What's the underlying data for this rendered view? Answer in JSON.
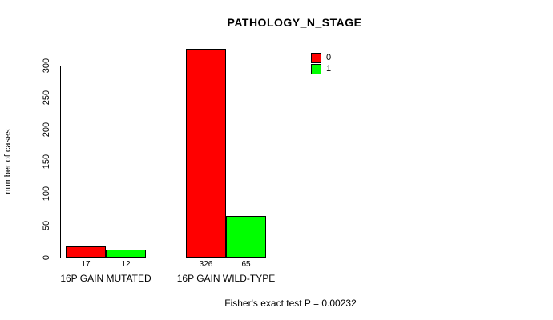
{
  "chart_data": {
    "type": "bar",
    "title": "PATHOLOGY_N_STAGE",
    "xlabel": "",
    "ylabel": "number of cases",
    "ylim": [
      0,
      300
    ],
    "yticks": [
      0,
      50,
      100,
      150,
      200,
      250,
      300
    ],
    "categories": [
      "16P GAIN MUTATED",
      "16P GAIN WILD-TYPE"
    ],
    "series": [
      {
        "name": "0",
        "color": "#ff0000",
        "values": [
          17,
          326
        ]
      },
      {
        "name": "1",
        "color": "#00ff00",
        "values": [
          12,
          65
        ]
      }
    ],
    "bar_count_labels": [
      [
        "17",
        "12"
      ],
      [
        "326",
        "65"
      ]
    ],
    "legend_position": "top-right",
    "grid": false,
    "annotation": "Fisher's exact test P = 0.00232"
  },
  "colors": {
    "background": "#ffffff",
    "axis": "#000000",
    "series0": "#ff0000",
    "series1": "#00ff00"
  }
}
